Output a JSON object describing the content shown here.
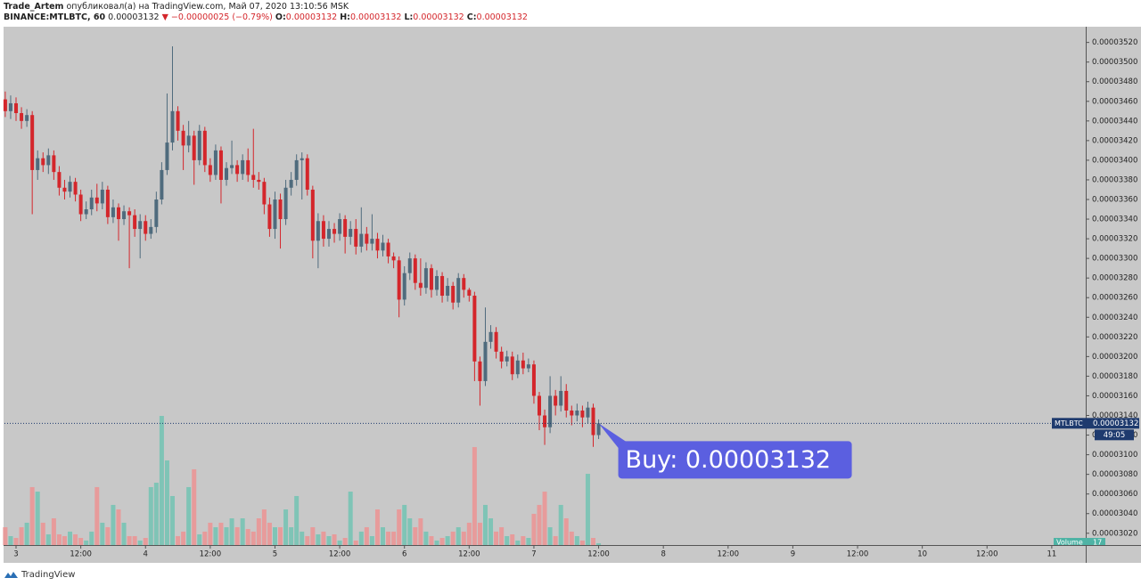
{
  "header": {
    "author": "Trade_Artem",
    "published": "опубликовал(а) на TradingView.com, Май 07, 2020 13:10:56 MSK",
    "symbol": "BINANCE:MTLBTC, 60",
    "last": "0.00003132",
    "change": "▼ −0.00000025 (−0.79%)",
    "ohlc_labels": [
      "O:",
      "H:",
      "L:",
      "C:"
    ],
    "ohlc_values": [
      "0.00003132",
      "0.00003132",
      "0.00003132",
      "0.00003132"
    ]
  },
  "chart_data": {
    "type": "candlestick",
    "open": [
      3.462e-05,
      3.45e-05,
      3.458e-05,
      3.448e-05,
      3.44e-05,
      3.446e-05,
      3.39e-05,
      3.402e-05,
      3.395e-05,
      3.405e-05,
      3.388e-05,
      3.372e-05,
      3.368e-05,
      3.378e-05,
      3.365e-05,
      3.345e-05,
      3.35e-05,
      3.362e-05,
      3.356e-05,
      3.37e-05,
      3.342e-05,
      3.352e-05,
      3.34e-05,
      3.348e-05,
      3.344e-05,
      3.33e-05,
      3.338e-05,
      3.325e-05,
      3.332e-05,
      3.36e-05,
      3.39e-05,
      3.418e-05,
      3.45e-05,
      3.43e-05,
      3.415e-05,
      3.425e-05,
      3.4e-05,
      3.43e-05,
      3.395e-05,
      3.385e-05,
      3.41e-05,
      3.38e-05,
      3.392e-05,
      3.395e-05,
      3.386e-05,
      3.4e-05,
      3.385e-05,
      3.38e-05,
      3.378e-05,
      3.355e-05,
      3.33e-05,
      3.36e-05,
      3.34e-05,
      3.372e-05,
      3.38e-05,
      3.4e-05,
      3.402e-05,
      3.37e-05,
      3.318e-05,
      3.338e-05,
      3.32e-05,
      3.33e-05,
      3.325e-05,
      3.34e-05,
      3.322e-05,
      3.33e-05,
      3.312e-05,
      3.325e-05,
      3.315e-05,
      3.32e-05,
      3.308e-05,
      3.316e-05,
      3.302e-05,
      3.298e-05,
      3.258e-05,
      3.285e-05,
      3.3e-05,
      3.275e-05,
      3.27e-05,
      3.29e-05,
      3.268e-05,
      3.282e-05,
      3.262e-05,
      3.272e-05,
      3.255e-05,
      3.28e-05,
      3.268e-05,
      3.262e-05,
      3.195e-05,
      3.175e-05,
      3.215e-05,
      3.225e-05,
      3.205e-05,
      3.195e-05,
      3.2e-05,
      3.182e-05,
      3.196e-05,
      3.188e-05,
      3.192e-05,
      3.16e-05,
      3.14e-05,
      3.128e-05,
      3.16e-05,
      3.15e-05,
      3.165e-05,
      3.145e-05,
      3.14e-05,
      3.145e-05,
      3.138e-05,
      3.148e-05,
      3.12e-05
    ],
    "high": [
      3.47e-05,
      3.466e-05,
      3.464e-05,
      3.454e-05,
      3.452e-05,
      3.45e-05,
      3.41e-05,
      3.408e-05,
      3.412e-05,
      3.41e-05,
      3.394e-05,
      3.38e-05,
      3.384e-05,
      3.382e-05,
      3.37e-05,
      3.358e-05,
      3.37e-05,
      3.376e-05,
      3.378e-05,
      3.374e-05,
      3.36e-05,
      3.356e-05,
      3.354e-05,
      3.352e-05,
      3.35e-05,
      3.345e-05,
      3.344e-05,
      3.34e-05,
      3.368e-05,
      3.398e-05,
      3.468e-05,
      3.516e-05,
      3.455e-05,
      3.436e-05,
      3.44e-05,
      3.43e-05,
      3.436e-05,
      3.434e-05,
      3.402e-05,
      3.416e-05,
      3.414e-05,
      3.398e-05,
      3.42e-05,
      3.4e-05,
      3.406e-05,
      3.412e-05,
      3.432e-05,
      3.388e-05,
      3.382e-05,
      3.362e-05,
      3.368e-05,
      3.366e-05,
      3.38e-05,
      3.388e-05,
      3.406e-05,
      3.408e-05,
      3.406e-05,
      3.374e-05,
      3.346e-05,
      3.344e-05,
      3.338e-05,
      3.336e-05,
      3.346e-05,
      3.344e-05,
      3.338e-05,
      3.34e-05,
      3.352e-05,
      3.332e-05,
      3.345e-05,
      3.326e-05,
      3.324e-05,
      3.32e-05,
      3.306e-05,
      3.302e-05,
      3.292e-05,
      3.306e-05,
      3.304e-05,
      3.3e-05,
      3.296e-05,
      3.294e-05,
      3.288e-05,
      3.286e-05,
      3.28e-05,
      3.276e-05,
      3.285e-05,
      3.284e-05,
      3.27e-05,
      3.266e-05,
      3.2e-05,
      3.25e-05,
      3.232e-05,
      3.23e-05,
      3.21e-05,
      3.206e-05,
      3.205e-05,
      3.202e-05,
      3.204e-05,
      3.198e-05,
      3.196e-05,
      3.164e-05,
      3.146e-05,
      3.18e-05,
      3.166e-05,
      3.18e-05,
      3.172e-05,
      3.15e-05,
      3.152e-05,
      3.15e-05,
      3.154e-05,
      3.152e-05,
      3.136e-05
    ],
    "low": [
      3.444e-05,
      3.442e-05,
      3.44e-05,
      3.432e-05,
      3.434e-05,
      3.345e-05,
      3.38e-05,
      3.388e-05,
      3.386e-05,
      3.38e-05,
      3.364e-05,
      3.36e-05,
      3.362e-05,
      3.358e-05,
      3.338e-05,
      3.34e-05,
      3.344e-05,
      3.348e-05,
      3.35e-05,
      3.335e-05,
      3.336e-05,
      3.318e-05,
      3.334e-05,
      3.29e-05,
      3.322e-05,
      3.3e-05,
      3.318e-05,
      3.32e-05,
      3.326e-05,
      3.355e-05,
      3.385e-05,
      3.41e-05,
      3.42e-05,
      3.39e-05,
      3.408e-05,
      3.375e-05,
      3.395e-05,
      3.388e-05,
      3.378e-05,
      3.38e-05,
      3.356e-05,
      3.374e-05,
      3.386e-05,
      3.378e-05,
      3.38e-05,
      3.378e-05,
      3.372e-05,
      3.37e-05,
      3.345e-05,
      3.322e-05,
      3.32e-05,
      3.31e-05,
      3.334e-05,
      3.364e-05,
      3.374e-05,
      3.36e-05,
      3.364e-05,
      3.3e-05,
      3.29e-05,
      3.312e-05,
      3.312e-05,
      3.316e-05,
      3.318e-05,
      3.305e-05,
      3.314e-05,
      3.304e-05,
      3.306e-05,
      3.308e-05,
      3.308e-05,
      3.3e-05,
      3.302e-05,
      3.295e-05,
      3.29e-05,
      3.24e-05,
      3.252e-05,
      3.278e-05,
      3.268e-05,
      3.262e-05,
      3.264e-05,
      3.26e-05,
      3.262e-05,
      3.255e-05,
      3.256e-05,
      3.248e-05,
      3.25e-05,
      3.26e-05,
      3.256e-05,
      3.175e-05,
      3.15e-05,
      3.17e-05,
      3.208e-05,
      3.198e-05,
      3.188e-05,
      3.19e-05,
      3.176e-05,
      3.178e-05,
      3.182e-05,
      3.184e-05,
      3.152e-05,
      3.125e-05,
      3.11e-05,
      3.122e-05,
      3.14e-05,
      3.144e-05,
      3.138e-05,
      3.13e-05,
      3.134e-05,
      3.128e-05,
      3.132e-05,
      3.108e-05,
      3.116e-05
    ],
    "close": [
      3.45e-05,
      3.458e-05,
      3.448e-05,
      3.44e-05,
      3.446e-05,
      3.39e-05,
      3.402e-05,
      3.395e-05,
      3.405e-05,
      3.388e-05,
      3.372e-05,
      3.368e-05,
      3.378e-05,
      3.365e-05,
      3.345e-05,
      3.35e-05,
      3.362e-05,
      3.356e-05,
      3.37e-05,
      3.342e-05,
      3.352e-05,
      3.34e-05,
      3.348e-05,
      3.344e-05,
      3.33e-05,
      3.338e-05,
      3.325e-05,
      3.332e-05,
      3.36e-05,
      3.39e-05,
      3.418e-05,
      3.45e-05,
      3.43e-05,
      3.415e-05,
      3.425e-05,
      3.4e-05,
      3.43e-05,
      3.395e-05,
      3.385e-05,
      3.41e-05,
      3.38e-05,
      3.392e-05,
      3.395e-05,
      3.386e-05,
      3.4e-05,
      3.385e-05,
      3.38e-05,
      3.378e-05,
      3.355e-05,
      3.33e-05,
      3.36e-05,
      3.34e-05,
      3.372e-05,
      3.38e-05,
      3.4e-05,
      3.402e-05,
      3.37e-05,
      3.318e-05,
      3.338e-05,
      3.32e-05,
      3.33e-05,
      3.325e-05,
      3.34e-05,
      3.322e-05,
      3.33e-05,
      3.312e-05,
      3.325e-05,
      3.315e-05,
      3.32e-05,
      3.308e-05,
      3.316e-05,
      3.302e-05,
      3.298e-05,
      3.258e-05,
      3.285e-05,
      3.3e-05,
      3.275e-05,
      3.27e-05,
      3.29e-05,
      3.268e-05,
      3.282e-05,
      3.262e-05,
      3.272e-05,
      3.255e-05,
      3.28e-05,
      3.268e-05,
      3.262e-05,
      3.195e-05,
      3.175e-05,
      3.215e-05,
      3.225e-05,
      3.205e-05,
      3.195e-05,
      3.2e-05,
      3.182e-05,
      3.196e-05,
      3.188e-05,
      3.192e-05,
      3.16e-05,
      3.14e-05,
      3.128e-05,
      3.16e-05,
      3.15e-05,
      3.165e-05,
      3.145e-05,
      3.14e-05,
      3.145e-05,
      3.138e-05,
      3.148e-05,
      3.12e-05,
      3.132e-05
    ],
    "volume": [
      170,
      85,
      68,
      170,
      213,
      553,
      510,
      213,
      102,
      255,
      102,
      85,
      128,
      102,
      68,
      43,
      128,
      553,
      213,
      170,
      383,
      340,
      213,
      85,
      85,
      43,
      68,
      553,
      595,
      1233,
      808,
      468,
      85,
      128,
      553,
      723,
      102,
      128,
      213,
      170,
      213,
      170,
      255,
      170,
      255,
      153,
      128,
      255,
      340,
      213,
      170,
      170,
      340,
      170,
      468,
      128,
      85,
      170,
      102,
      128,
      85,
      102,
      43,
      68,
      510,
      43,
      128,
      170,
      85,
      340,
      170,
      128,
      128,
      340,
      383,
      255,
      170,
      255,
      128,
      85,
      43,
      68,
      85,
      128,
      170,
      128,
      213,
      935,
      213,
      383,
      255,
      128,
      170,
      85,
      102,
      43,
      85,
      68,
      298,
      383,
      510,
      170,
      85,
      383,
      255,
      128,
      85,
      43,
      680,
      68,
      17
    ],
    "up_color": "#4f6b7d",
    "down_color": "#d4262b",
    "volume_up_color": "#7fc4b6",
    "volume_down_color": "#e79b9b",
    "ylim": [
      3.008e-05,
      3.536e-05
    ],
    "yticks": [
      {
        "value": 3.02e-05,
        "label": "0.00003020"
      },
      {
        "value": 3.04e-05,
        "label": "0.00003040"
      },
      {
        "value": 3.06e-05,
        "label": "0.00003060"
      },
      {
        "value": 3.08e-05,
        "label": "0.00003080"
      },
      {
        "value": 3.1e-05,
        "label": "0.00003100"
      },
      {
        "value": 3.12e-05,
        "label": "0.00003120"
      },
      {
        "value": 3.14e-05,
        "label": "0.00003140"
      },
      {
        "value": 3.16e-05,
        "label": "0.00003160"
      },
      {
        "value": 3.18e-05,
        "label": "0.00003180"
      },
      {
        "value": 3.2e-05,
        "label": "0.00003200"
      },
      {
        "value": 3.22e-05,
        "label": "0.00003220"
      },
      {
        "value": 3.24e-05,
        "label": "0.00003240"
      },
      {
        "value": 3.26e-05,
        "label": "0.00003260"
      },
      {
        "value": 3.28e-05,
        "label": "0.00003280"
      },
      {
        "value": 3.3e-05,
        "label": "0.00003300"
      },
      {
        "value": 3.32e-05,
        "label": "0.00003320"
      },
      {
        "value": 3.34e-05,
        "label": "0.00003340"
      },
      {
        "value": 3.36e-05,
        "label": "0.00003360"
      },
      {
        "value": 3.38e-05,
        "label": "0.00003380"
      },
      {
        "value": 3.4e-05,
        "label": "0.00003400"
      },
      {
        "value": 3.42e-05,
        "label": "0.00003420"
      },
      {
        "value": 3.44e-05,
        "label": "0.00003440"
      },
      {
        "value": 3.46e-05,
        "label": "0.00003460"
      },
      {
        "value": 3.48e-05,
        "label": "0.00003480"
      },
      {
        "value": 3.5e-05,
        "label": "0.00003500"
      },
      {
        "value": 3.52e-05,
        "label": "0.00003520"
      }
    ],
    "xlim": [
      -0.15,
      200.3
    ],
    "xticks": [
      {
        "value": 2,
        "label": "3"
      },
      {
        "value": 14,
        "label": "12:00"
      },
      {
        "value": 26,
        "label": "4"
      },
      {
        "value": 38,
        "label": "12:00"
      },
      {
        "value": 50,
        "label": "5"
      },
      {
        "value": 62,
        "label": "12:00"
      },
      {
        "value": 74,
        "label": "6"
      },
      {
        "value": 86,
        "label": "12:00"
      },
      {
        "value": 98,
        "label": "7"
      },
      {
        "value": 110,
        "label": "12:00"
      },
      {
        "value": 122,
        "label": "8"
      },
      {
        "value": 134,
        "label": "12:00"
      },
      {
        "value": 146,
        "label": "9"
      },
      {
        "value": 158,
        "label": "12:00"
      },
      {
        "value": 170,
        "label": "10"
      },
      {
        "value": 182,
        "label": "12:00"
      },
      {
        "value": 194,
        "label": "11"
      }
    ],
    "grid": false,
    "symbol_label": "MTLBTC",
    "countdown": "49:05",
    "volume_label": "Volume",
    "annotation": "Buy: 0.00003132"
  },
  "footer": "TradingView"
}
